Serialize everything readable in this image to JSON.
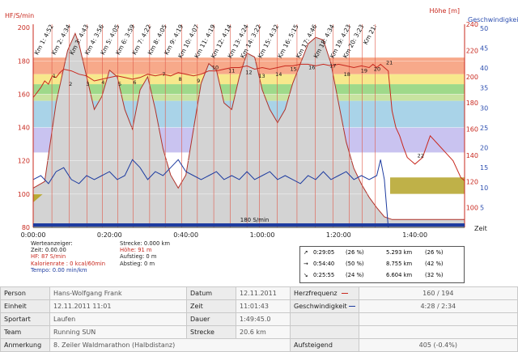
{
  "chart_data": {
    "type": "line",
    "y_left_label": "HF/S/min",
    "y_right1_label": "Höhe [m]",
    "y_right2_label": "Geschwindigkeit [",
    "x_label": "Zeit",
    "y_left_ticks": [
      80,
      100,
      120,
      140,
      160,
      180,
      200
    ],
    "y_left_range": [
      80,
      202
    ],
    "y_right1_ticks": [
      100,
      120,
      140,
      160,
      180,
      200,
      220,
      240
    ],
    "y_right1_range": [
      85,
      240
    ],
    "y_right2_ticks": [
      5,
      10,
      15,
      20,
      25,
      30,
      35,
      40,
      45,
      50
    ],
    "y_right2_range": [
      0,
      51
    ],
    "x_ticks": [
      "0:00:00",
      "0:20:00",
      "0:40:00",
      "1:00:00",
      "1:20:00",
      "1:40:00"
    ],
    "x_tick_minutes": [
      0,
      20,
      40,
      60,
      80,
      100
    ],
    "x_range_minutes": [
      0,
      113
    ],
    "hr_zones": [
      {
        "from": 172,
        "to": 182,
        "color": "#f7a98a"
      },
      {
        "from": 166,
        "to": 172,
        "color": "#f7e88c"
      },
      {
        "from": 160,
        "to": 166,
        "color": "#9fd98a"
      },
      {
        "from": 156,
        "to": 160,
        "color": "#c8e3a0"
      },
      {
        "from": 140,
        "to": 156,
        "color": "#a9d3e8"
      },
      {
        "from": 125,
        "to": 140,
        "color": "#c9c3f0"
      }
    ],
    "limit_label": "180 S/min",
    "elevation": {
      "name": "Höhe",
      "minutes": [
        0,
        3,
        6,
        9,
        11,
        12,
        14,
        16,
        18,
        20,
        22,
        24,
        26,
        28,
        30,
        32,
        34,
        36,
        38,
        40,
        42,
        44,
        46,
        48,
        50,
        52,
        54,
        56,
        58,
        60,
        62,
        64,
        66,
        68,
        70,
        72,
        74,
        76,
        78,
        80,
        82,
        84,
        86,
        88,
        90,
        92,
        94,
        100,
        106,
        110,
        113
      ],
      "values": [
        115,
        120,
        180,
        220,
        233,
        225,
        200,
        175,
        185,
        205,
        200,
        175,
        160,
        190,
        200,
        175,
        145,
        125,
        115,
        125,
        160,
        195,
        210,
        205,
        180,
        175,
        200,
        218,
        215,
        190,
        175,
        165,
        175,
        195,
        210,
        225,
        230,
        228,
        210,
        180,
        150,
        130,
        118,
        108,
        100,
        93,
        91,
        91,
        91,
        91,
        91
      ]
    },
    "heart_rate": {
      "name": "HF",
      "minutes": [
        0,
        1,
        2,
        3,
        4,
        5,
        6,
        7,
        8,
        10,
        12,
        14,
        16,
        18,
        20,
        22,
        24,
        26,
        28,
        30,
        32,
        34,
        36,
        38,
        40,
        42,
        44,
        46,
        48,
        50,
        52,
        54,
        56,
        58,
        60,
        62,
        64,
        66,
        68,
        70,
        72,
        74,
        76,
        78,
        80,
        82,
        84,
        86,
        88,
        89,
        90,
        91,
        92,
        93,
        94,
        95,
        96,
        97,
        98,
        100,
        102,
        104,
        106,
        108,
        110,
        112,
        113
      ],
      "values": [
        158,
        161,
        164,
        168,
        166,
        171,
        170,
        173,
        175,
        174,
        172,
        171,
        168,
        169,
        170,
        171,
        170,
        169,
        170,
        172,
        171,
        172,
        171,
        173,
        172,
        171,
        172,
        174,
        174,
        175,
        176,
        176,
        177,
        175,
        176,
        175,
        176,
        177,
        177,
        178,
        178,
        177,
        178,
        177,
        178,
        177,
        176,
        177,
        176,
        178,
        176,
        178,
        176,
        174,
        150,
        140,
        135,
        128,
        122,
        118,
        122,
        135,
        130,
        125,
        120,
        110,
        108
      ]
    },
    "speed": {
      "name": "Tempo",
      "minutes": [
        0,
        2,
        4,
        6,
        8,
        10,
        12,
        14,
        16,
        18,
        20,
        22,
        24,
        26,
        28,
        30,
        32,
        34,
        36,
        38,
        40,
        42,
        44,
        46,
        48,
        50,
        52,
        54,
        56,
        58,
        60,
        62,
        64,
        66,
        68,
        70,
        72,
        74,
        76,
        78,
        80,
        82,
        84,
        86,
        88,
        90,
        91,
        92,
        93
      ],
      "values": [
        12,
        13,
        11,
        14,
        15,
        12,
        11,
        13,
        12,
        13,
        14,
        12,
        13,
        17,
        15,
        12,
        14,
        13,
        15,
        17,
        14,
        13,
        12,
        13,
        14,
        12,
        13,
        12,
        14,
        12,
        13,
        14,
        12,
        13,
        12,
        11,
        13,
        12,
        14,
        12,
        13,
        14,
        12,
        13,
        12,
        13,
        17,
        12,
        0
      ]
    },
    "km_markers": [
      "Km 1: 4:52",
      "Km 2: 4:34",
      "Km 3: 4:43",
      "Km 4: 3:56",
      "Km 5: 4:05",
      "Km 6: 3:59",
      "Km 7: 4:22",
      "Km 8: 4:05",
      "Km 9: 4:19",
      "Km 10: 4:07",
      "Km 11: 4:19",
      "Km 12: 4:14",
      "Km 13: 4:24",
      "Km 14: 3:22",
      "Km 15: 4:32",
      "Km 16: 5:15",
      "Km 17: 4:46",
      "Km 18: 4:34",
      "Km 19: 4:23",
      "Km 20: 3:23",
      "Km 21:"
    ],
    "km_minutes": [
      4.9,
      9.4,
      14.1,
      18.1,
      22.2,
      26.2,
      30.5,
      34.6,
      38.9,
      43.0,
      47.3,
      51.6,
      56.0,
      59.3,
      63.9,
      69.1,
      73.9,
      78.5,
      82.8,
      86.2,
      89.6
    ],
    "km_numbers": [
      "1",
      "2",
      "3",
      "4",
      "5",
      "6",
      "7",
      "8",
      "9",
      "10",
      "11",
      "12",
      "13",
      "14",
      "15",
      "16",
      "17",
      "18",
      "19",
      "20",
      "21",
      "22"
    ],
    "km_number_minutes": [
      5.5,
      9.8,
      14.3,
      18.3,
      22.7,
      26.6,
      34.2,
      38.5,
      43.3,
      47.7,
      52.0,
      56.5,
      59.9,
      64.3,
      68.2,
      73.0,
      78.5,
      82.2,
      86.7,
      90.1,
      93.3,
      101.5
    ],
    "km_number_values": [
      170,
      165,
      165,
      166,
      165,
      166,
      171,
      168,
      167,
      175,
      173,
      172,
      170,
      171,
      174,
      175,
      176,
      171,
      173,
      174,
      178,
      122
    ]
  },
  "cursor_info": {
    "heading": "Werteanzeiger:",
    "zeit": "Zeit: 0.00.00",
    "hf": "HF: 87 S/min",
    "kalorien": "Kalorienrate : 0 kcal/60min",
    "tempo": "Tempo: 0.00 min/km",
    "strecke": "Strecke: 0.000 km",
    "hoehe": "Höhe: 91 m",
    "aufstieg": "Aufstieg: 0 m",
    "abstieg": "Abstieg: 0 m"
  },
  "slope_box": {
    "rows": [
      {
        "arrow": "↗",
        "time": "0:29:05",
        "pct1": "(26 %)",
        "dist": "5.293 km",
        "pct2": "(26 %)"
      },
      {
        "arrow": "→",
        "time": "0:54:40",
        "pct1": "(50 %)",
        "dist": "8.755 km",
        "pct2": "(42 %)"
      },
      {
        "arrow": "↘",
        "time": "0:25:55",
        "pct1": "(24 %)",
        "dist": "6.604 km",
        "pct2": "(32 %)"
      }
    ]
  },
  "summary": {
    "person_label": "Person",
    "person": "Hans-Wolfgang Frank",
    "datum_label": "Datum",
    "datum": "12.11.2011",
    "hf_label": "Herzfrequenz",
    "hf": "160 / 194",
    "einheit_label": "Einheit",
    "einheit": "12.11.2011 11:01",
    "zeit_label": "Zeit",
    "zeit": "11:01:43",
    "speed_label": "Geschwindigkeit",
    "speed": "4:28 / 2:34",
    "sportart_label": "Sportart",
    "sportart": "Laufen",
    "dauer_label": "Dauer",
    "dauer": "1:49:45.0",
    "team_label": "Team",
    "team": "Running SUN",
    "strecke_label": "Strecke",
    "strecke": "20.6 km",
    "anmerkung_label": "Anmerkung",
    "anmerkung": "8. Zeiler Waldmarathon (Halbdistanz)",
    "aufsteigend_label": "Aufsteigend",
    "aufsteigend": "405 (-0.4%)"
  },
  "colors": {
    "hr": "#c8281e",
    "speed": "#1e3ca0",
    "elevation_fill": "#d3d3d3",
    "elevation_line": "#b0322a",
    "left_axis": "#c8281e",
    "right1_axis": "#c8281e",
    "right2_axis": "#2d4fb0",
    "limit_bar": "#1e3ca0",
    "low_fill": "#b8a834"
  }
}
